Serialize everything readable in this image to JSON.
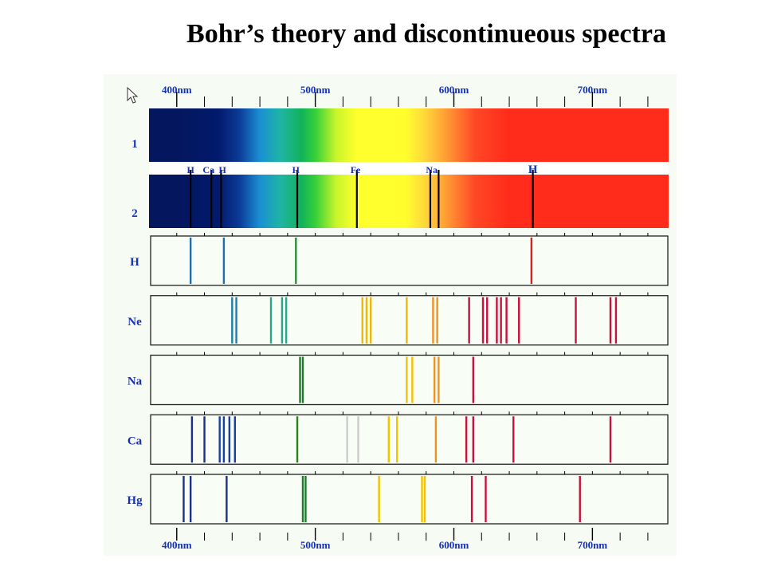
{
  "title": "Bohr’s theory and discontinueous spectra",
  "axis": {
    "min_nm": 380,
    "max_nm": 755,
    "major_ticks": [
      400,
      500,
      600,
      700
    ],
    "minor_step": 20,
    "top_labels": [
      "400nm",
      "500nm",
      "600nm",
      "700nm"
    ],
    "bottom_labels": [
      "400nm",
      "500nm",
      "600nm",
      "700nm"
    ]
  },
  "continuous_spectrum": {
    "label": "1",
    "stops": [
      {
        "nm": 400,
        "color": "#04165e"
      },
      {
        "nm": 430,
        "color": "#021a6c"
      },
      {
        "nm": 445,
        "color": "#0c3a96"
      },
      {
        "nm": 460,
        "color": "#1a8fd4"
      },
      {
        "nm": 475,
        "color": "#1fb5a3"
      },
      {
        "nm": 490,
        "color": "#12b25a"
      },
      {
        "nm": 500,
        "color": "#35d03a"
      },
      {
        "nm": 515,
        "color": "#c8f52a"
      },
      {
        "nm": 530,
        "color": "#ffff2d"
      },
      {
        "nm": 565,
        "color": "#ffff2d"
      },
      {
        "nm": 580,
        "color": "#ffd43a"
      },
      {
        "nm": 595,
        "color": "#ff9a34"
      },
      {
        "nm": 615,
        "color": "#ff4826"
      },
      {
        "nm": 640,
        "color": "#ff2b1b"
      },
      {
        "nm": 755,
        "color": "#ff2b1b"
      }
    ]
  },
  "absorption_spectrum": {
    "label": "2",
    "lines_nm": [
      410,
      425,
      432,
      487,
      530,
      583,
      589,
      657
    ],
    "annotations": [
      {
        "text": "H",
        "nm": 410
      },
      {
        "text": "Ca",
        "nm": 423
      },
      {
        "text": "H",
        "nm": 433
      },
      {
        "text": "H",
        "nm": 486
      },
      {
        "text": "Fe",
        "nm": 529
      },
      {
        "text": "Na",
        "nm": 584
      },
      {
        "text": "H",
        "nm": 657
      }
    ]
  },
  "emission_spectra": [
    {
      "label": "H",
      "lines": [
        {
          "nm": 410,
          "color": "#1d6fb0"
        },
        {
          "nm": 434,
          "color": "#1d6fb0"
        },
        {
          "nm": 486,
          "color": "#2e8b3d"
        },
        {
          "nm": 656,
          "color": "#e0201a"
        }
      ]
    },
    {
      "label": "Ne",
      "lines": [
        {
          "nm": 440,
          "color": "#1a7fb0"
        },
        {
          "nm": 443,
          "color": "#1a7fb0"
        },
        {
          "nm": 468,
          "color": "#2aa58a"
        },
        {
          "nm": 476,
          "color": "#2aa58a"
        },
        {
          "nm": 479,
          "color": "#2aa58a"
        },
        {
          "nm": 534,
          "color": "#f1b800"
        },
        {
          "nm": 537,
          "color": "#f1b800"
        },
        {
          "nm": 540,
          "color": "#f1b800"
        },
        {
          "nm": 566,
          "color": "#f1b800"
        },
        {
          "nm": 585,
          "color": "#f39020"
        },
        {
          "nm": 588,
          "color": "#f39020"
        },
        {
          "nm": 611,
          "color": "#c8103c"
        },
        {
          "nm": 621,
          "color": "#c8103c"
        },
        {
          "nm": 624,
          "color": "#c8103c"
        },
        {
          "nm": 631,
          "color": "#c8103c"
        },
        {
          "nm": 634,
          "color": "#c8103c"
        },
        {
          "nm": 638,
          "color": "#c8103c"
        },
        {
          "nm": 647,
          "color": "#c8103c"
        },
        {
          "nm": 688,
          "color": "#c8103c"
        },
        {
          "nm": 713,
          "color": "#c8103c"
        },
        {
          "nm": 717,
          "color": "#c8103c"
        }
      ]
    },
    {
      "label": "Na",
      "lines": [
        {
          "nm": 489,
          "color": "#1f7a2e"
        },
        {
          "nm": 491,
          "color": "#1f7a2e"
        },
        {
          "nm": 566,
          "color": "#f1c400"
        },
        {
          "nm": 570,
          "color": "#f1c400"
        },
        {
          "nm": 586,
          "color": "#f39020"
        },
        {
          "nm": 589,
          "color": "#f39020"
        },
        {
          "nm": 614,
          "color": "#c8103c"
        }
      ]
    },
    {
      "label": "Ca",
      "lines": [
        {
          "nm": 411,
          "color": "#1a2f8f"
        },
        {
          "nm": 420,
          "color": "#1a2f8f"
        },
        {
          "nm": 431,
          "color": "#1a3f9f"
        },
        {
          "nm": 434,
          "color": "#1a3f9f"
        },
        {
          "nm": 438,
          "color": "#1a3f9f"
        },
        {
          "nm": 442,
          "color": "#1a3f9f"
        },
        {
          "nm": 487,
          "color": "#2f7f1a"
        },
        {
          "nm": 523,
          "color": "#cccccc"
        },
        {
          "nm": 531,
          "color": "#cccccc"
        },
        {
          "nm": 553,
          "color": "#f1c400"
        },
        {
          "nm": 559,
          "color": "#f1c400"
        },
        {
          "nm": 587,
          "color": "#f39020"
        },
        {
          "nm": 609,
          "color": "#c8103c"
        },
        {
          "nm": 614,
          "color": "#c8103c"
        },
        {
          "nm": 643,
          "color": "#c8103c"
        },
        {
          "nm": 713,
          "color": "#c8103c"
        }
      ]
    },
    {
      "label": "Hg",
      "lines": [
        {
          "nm": 405,
          "color": "#1a2f8f"
        },
        {
          "nm": 410,
          "color": "#1a2f8f"
        },
        {
          "nm": 436,
          "color": "#1a2f8f"
        },
        {
          "nm": 491,
          "color": "#1f7a2e"
        },
        {
          "nm": 493,
          "color": "#1f7a2e"
        },
        {
          "nm": 546,
          "color": "#f1c400"
        },
        {
          "nm": 577,
          "color": "#f1c400"
        },
        {
          "nm": 579,
          "color": "#f1c400"
        },
        {
          "nm": 613,
          "color": "#c8103c"
        },
        {
          "nm": 623,
          "color": "#c8103c"
        },
        {
          "nm": 691,
          "color": "#c8103c"
        }
      ]
    }
  ],
  "colors": {
    "label_blue": "#1530b8",
    "panel_fill": "#f8fdf6",
    "figure_bg": "#f6fbf4"
  },
  "cursor_icon": "arrow-pointer-icon"
}
